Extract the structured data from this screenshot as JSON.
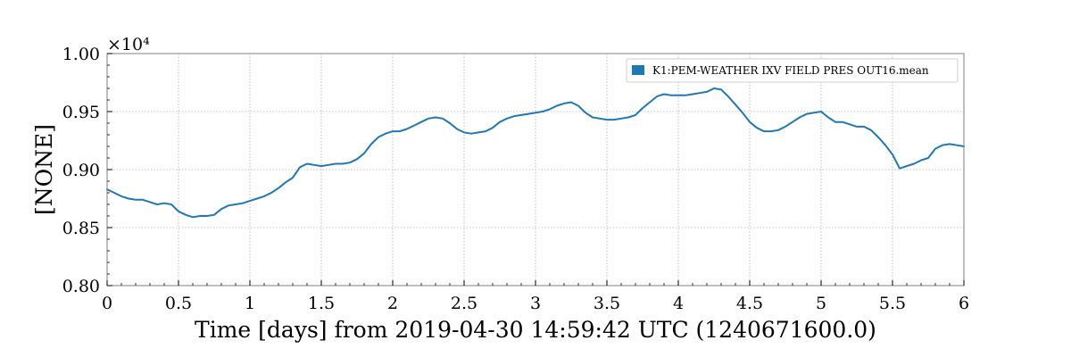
{
  "chart_data": {
    "type": "line",
    "title": "",
    "xlabel": "Time [days] from 2019-04-30 14:59:42 UTC (1240671600.0)",
    "ylabel": "[NONE]",
    "y_multiplier_label": "×10⁴",
    "xlim": [
      0,
      6
    ],
    "ylim": [
      0.8,
      1.0
    ],
    "x_ticks": [
      0,
      0.5,
      1,
      1.5,
      2,
      2.5,
      3,
      3.5,
      4,
      4.5,
      5,
      5.5,
      6
    ],
    "x_tick_labels": [
      "0",
      "0.5",
      "1",
      "1.5",
      "2",
      "2.5",
      "3",
      "3.5",
      "4",
      "4.5",
      "5",
      "5.5",
      "6"
    ],
    "y_ticks": [
      0.8,
      0.85,
      0.9,
      0.95,
      1.0
    ],
    "y_tick_labels": [
      "0.80",
      "0.85",
      "0.90",
      "0.95",
      "1.00"
    ],
    "grid": true,
    "legend_position": "top-right",
    "series": [
      {
        "name": "K1:PEM-WEATHER IXV FIELD PRES OUT16.mean",
        "color": "#1f77b4",
        "x": [
          0,
          0.05,
          0.1,
          0.15,
          0.2,
          0.25,
          0.3,
          0.35,
          0.4,
          0.45,
          0.5,
          0.55,
          0.6,
          0.65,
          0.7,
          0.75,
          0.8,
          0.85,
          0.9,
          0.95,
          1.0,
          1.05,
          1.1,
          1.15,
          1.2,
          1.25,
          1.3,
          1.35,
          1.4,
          1.45,
          1.5,
          1.55,
          1.6,
          1.65,
          1.7,
          1.75,
          1.8,
          1.85,
          1.9,
          1.95,
          2.0,
          2.05,
          2.1,
          2.15,
          2.2,
          2.25,
          2.3,
          2.35,
          2.4,
          2.45,
          2.5,
          2.55,
          2.6,
          2.65,
          2.7,
          2.75,
          2.8,
          2.85,
          2.9,
          2.95,
          3.0,
          3.05,
          3.1,
          3.15,
          3.2,
          3.25,
          3.3,
          3.35,
          3.4,
          3.45,
          3.5,
          3.55,
          3.6,
          3.65,
          3.7,
          3.75,
          3.8,
          3.85,
          3.9,
          3.95,
          4.0,
          4.05,
          4.1,
          4.15,
          4.2,
          4.25,
          4.3,
          4.35,
          4.4,
          4.45,
          4.5,
          4.55,
          4.6,
          4.65,
          4.7,
          4.75,
          4.8,
          4.85,
          4.9,
          4.95,
          5.0,
          5.05,
          5.1,
          5.15,
          5.2,
          5.25,
          5.3,
          5.35,
          5.4,
          5.45,
          5.5,
          5.55,
          5.6,
          5.65,
          5.7,
          5.75,
          5.8,
          5.85,
          5.9,
          5.95,
          6.0
        ],
        "y": [
          0.883,
          0.88,
          0.877,
          0.875,
          0.874,
          0.874,
          0.872,
          0.87,
          0.871,
          0.87,
          0.864,
          0.861,
          0.859,
          0.86,
          0.86,
          0.861,
          0.866,
          0.869,
          0.87,
          0.871,
          0.873,
          0.875,
          0.877,
          0.88,
          0.884,
          0.889,
          0.893,
          0.902,
          0.905,
          0.904,
          0.903,
          0.904,
          0.905,
          0.905,
          0.906,
          0.909,
          0.914,
          0.922,
          0.928,
          0.931,
          0.933,
          0.933,
          0.935,
          0.938,
          0.941,
          0.944,
          0.945,
          0.944,
          0.94,
          0.935,
          0.932,
          0.931,
          0.932,
          0.933,
          0.936,
          0.941,
          0.944,
          0.946,
          0.947,
          0.948,
          0.949,
          0.95,
          0.952,
          0.955,
          0.957,
          0.958,
          0.955,
          0.949,
          0.945,
          0.944,
          0.943,
          0.943,
          0.944,
          0.945,
          0.947,
          0.953,
          0.958,
          0.963,
          0.965,
          0.964,
          0.964,
          0.964,
          0.965,
          0.966,
          0.967,
          0.97,
          0.969,
          0.963,
          0.956,
          0.949,
          0.941,
          0.936,
          0.933,
          0.933,
          0.934,
          0.937,
          0.941,
          0.945,
          0.948,
          0.949,
          0.95,
          0.945,
          0.941,
          0.941,
          0.939,
          0.937,
          0.937,
          0.934,
          0.928,
          0.921,
          0.913,
          0.901,
          0.903,
          0.905,
          0.908,
          0.91,
          0.918,
          0.921,
          0.922,
          0.921,
          0.92
        ]
      }
    ]
  }
}
